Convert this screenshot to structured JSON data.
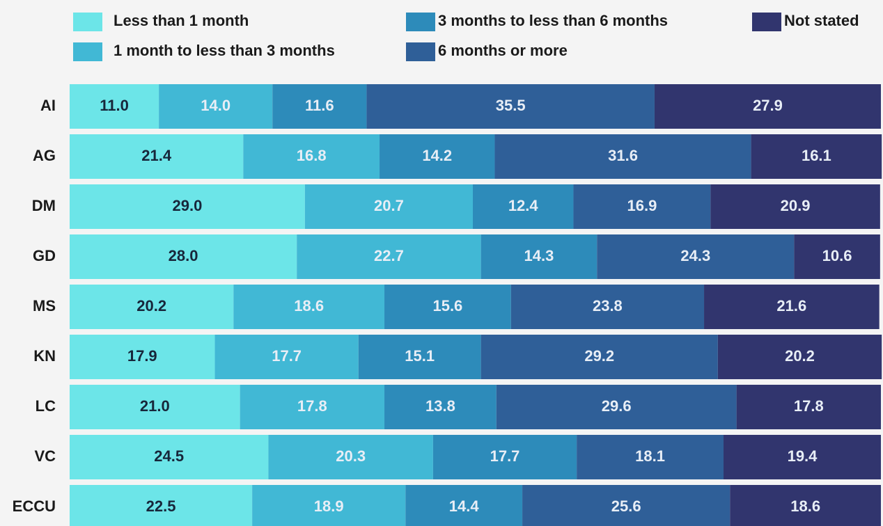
{
  "chart_data": {
    "type": "stacked-barh",
    "categories": [
      "AI",
      "AG",
      "DM",
      "GD",
      "MS",
      "KN",
      "LC",
      "VC",
      "ECCU"
    ],
    "xlim": [
      0,
      100
    ],
    "legend": "top",
    "series": [
      {
        "name": "Less than 1 month",
        "color": "#6ce5e8",
        "values": [
          11.0,
          21.4,
          29.0,
          28.0,
          20.2,
          17.9,
          21.0,
          24.5,
          22.5
        ],
        "value_labels": [
          "11.0",
          "21.4",
          "29.0",
          "28.0",
          "20.2",
          "17.9",
          "21.0",
          "24.5",
          "22.5"
        ]
      },
      {
        "name": "1 month to less than 3 months",
        "color": "#41b8d5",
        "values": [
          14.0,
          16.8,
          20.7,
          22.7,
          18.6,
          17.7,
          17.8,
          20.3,
          18.9
        ],
        "value_labels": [
          "14.0",
          "16.8",
          "20.7",
          "22.7",
          "18.6",
          "17.7",
          "17.8",
          "20.3",
          "18.9"
        ]
      },
      {
        "name": "3 months to less than 6 months",
        "color": "#2d8bba",
        "values": [
          11.6,
          14.2,
          12.4,
          14.3,
          15.6,
          15.1,
          13.8,
          17.7,
          14.4
        ],
        "value_labels": [
          "11.6",
          "14.2",
          "12.4",
          "14.3",
          "15.6",
          "15.1",
          "13.8",
          "17.7",
          "14.4"
        ]
      },
      {
        "name": "6 months or more",
        "color": "#2f5f98",
        "values": [
          35.5,
          31.6,
          16.9,
          24.3,
          23.8,
          29.2,
          29.6,
          18.1,
          25.6
        ],
        "value_labels": [
          "35.5",
          "31.6",
          "16.9",
          "24.3",
          "23.8",
          "29.2",
          "29.6",
          "18.1",
          "25.6"
        ]
      },
      {
        "name": "Not stated",
        "color": "#31356e",
        "values": [
          27.9,
          16.1,
          20.9,
          10.6,
          21.6,
          20.2,
          17.8,
          19.4,
          18.6
        ],
        "value_labels": [
          "27.9",
          "16.1",
          "20.9",
          "10.6",
          "21.6",
          "20.2",
          "17.8",
          "19.4",
          "18.6"
        ]
      }
    ]
  }
}
